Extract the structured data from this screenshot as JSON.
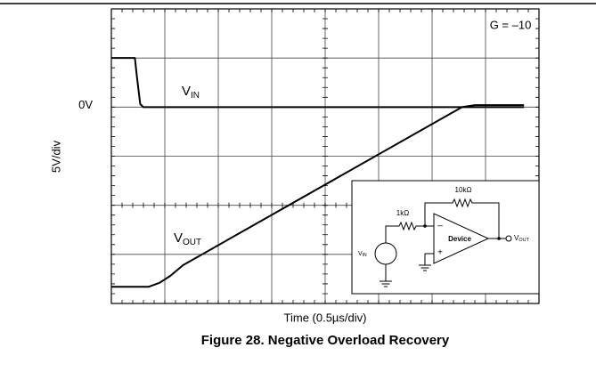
{
  "chart_data": {
    "type": "line",
    "x_label": "Time (0.5µs/div)",
    "y_label": "5V/div",
    "caption": "Figure 28. Negative Overload Recovery",
    "gain": "G = –10",
    "xlim": [
      0,
      4
    ],
    "xticks": [
      0,
      0.5,
      1,
      1.5,
      2,
      2.5,
      3,
      3.5,
      4
    ],
    "ylim": [
      -20,
      10
    ],
    "yticks": [
      -20,
      -15,
      -10,
      -5,
      {
        "value": 0,
        "label": "0V"
      },
      5,
      10
    ],
    "series": [
      {
        "color": "#000000",
        "x": [
          0,
          0.22,
          0.24,
          0.27,
          0.3,
          3.86
        ],
        "values": [
          5,
          5,
          3,
          0.3,
          0,
          0
        ]
      },
      {
        "color": "#000000",
        "x": [
          0,
          0.35,
          0.45,
          0.55,
          0.67,
          3.28,
          3.4,
          3.86
        ],
        "values": [
          -18.3,
          -18.3,
          -17.9,
          -17.2,
          -16.1,
          0,
          0.2,
          0.2
        ]
      }
    ],
    "trace_labels": [
      {
        "text": "V",
        "subscript": "IN"
      },
      {
        "text": "V",
        "subscript": "OUT"
      }
    ],
    "inset": {
      "feedback_resistor": "10kΩ",
      "input_resistor": "1kΩ",
      "device": "Device",
      "inverting": "–",
      "noninverting": "+",
      "input": {
        "text": "V",
        "subscript": "IN"
      },
      "output": {
        "text": "V",
        "subscript": "OUT"
      }
    }
  }
}
